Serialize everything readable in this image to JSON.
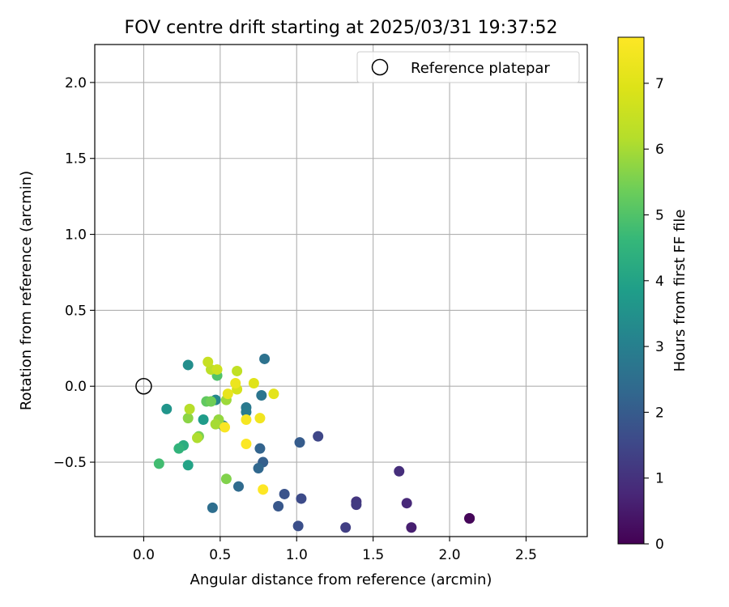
{
  "chart_data": {
    "type": "scatter",
    "title": "FOV centre drift starting at 2025/03/31 19:37:52",
    "xlabel": "Angular distance from reference (arcmin)",
    "ylabel": "Rotation from reference (arcmin)",
    "xlim": [
      -0.32,
      2.9
    ],
    "ylim": [
      -0.99,
      2.25
    ],
    "x_ticks": [
      0.0,
      0.5,
      1.0,
      1.5,
      2.0,
      2.5
    ],
    "x_tick_labels": [
      "0.0",
      "0.5",
      "1.0",
      "1.5",
      "2.0",
      "2.5"
    ],
    "y_ticks": [
      -0.5,
      0.0,
      0.5,
      1.0,
      1.5,
      2.0
    ],
    "y_tick_labels": [
      "−0.5",
      "0.0",
      "0.5",
      "1.0",
      "1.5",
      "2.0"
    ],
    "grid": true,
    "legend_placement": "upper-right",
    "legend": [
      {
        "name": "Reference platepar",
        "marker": "open-circle"
      }
    ],
    "reference_point": {
      "x": 0.0,
      "y": 0.0
    },
    "colorbar": {
      "label": "Hours from first FF file",
      "colormap": "viridis",
      "range": [
        0,
        7.7
      ],
      "ticks": [
        0,
        1,
        2,
        3,
        4,
        5,
        6,
        7
      ],
      "tick_labels": [
        "0",
        "1",
        "2",
        "3",
        "4",
        "5",
        "6",
        "7"
      ]
    },
    "points": [
      {
        "x": 2.13,
        "y": -0.87,
        "hours": 0.0
      },
      {
        "x": 2.13,
        "y": -0.87,
        "hours": 0.1
      },
      {
        "x": 1.75,
        "y": -0.93,
        "hours": 0.6
      },
      {
        "x": 1.72,
        "y": -0.77,
        "hours": 0.8
      },
      {
        "x": 1.67,
        "y": -0.56,
        "hours": 0.9
      },
      {
        "x": 1.39,
        "y": -0.76,
        "hours": 1.1
      },
      {
        "x": 1.39,
        "y": -0.78,
        "hours": 1.2
      },
      {
        "x": 1.32,
        "y": -0.93,
        "hours": 1.3
      },
      {
        "x": 1.14,
        "y": -0.33,
        "hours": 1.5
      },
      {
        "x": 1.03,
        "y": -0.74,
        "hours": 1.6
      },
      {
        "x": 1.01,
        "y": -0.92,
        "hours": 1.7
      },
      {
        "x": 0.92,
        "y": -0.71,
        "hours": 1.8
      },
      {
        "x": 0.88,
        "y": -0.79,
        "hours": 1.9
      },
      {
        "x": 1.02,
        "y": -0.37,
        "hours": 2.0
      },
      {
        "x": 0.78,
        "y": -0.5,
        "hours": 2.1
      },
      {
        "x": 0.76,
        "y": -0.41,
        "hours": 2.2
      },
      {
        "x": 0.75,
        "y": -0.54,
        "hours": 2.3
      },
      {
        "x": 0.62,
        "y": -0.66,
        "hours": 2.4
      },
      {
        "x": 0.45,
        "y": -0.8,
        "hours": 2.5
      },
      {
        "x": 0.79,
        "y": 0.18,
        "hours": 2.6
      },
      {
        "x": 0.77,
        "y": -0.06,
        "hours": 2.7
      },
      {
        "x": 0.67,
        "y": -0.14,
        "hours": 2.8
      },
      {
        "x": 0.67,
        "y": -0.17,
        "hours": 2.9
      },
      {
        "x": 0.52,
        "y": -0.26,
        "hours": 3.0
      },
      {
        "x": 0.47,
        "y": -0.09,
        "hours": 3.2
      },
      {
        "x": 0.29,
        "y": 0.14,
        "hours": 3.4
      },
      {
        "x": 0.15,
        "y": -0.15,
        "hours": 3.6
      },
      {
        "x": 0.39,
        "y": -0.22,
        "hours": 3.8
      },
      {
        "x": 0.29,
        "y": -0.52,
        "hours": 4.0
      },
      {
        "x": 0.26,
        "y": -0.39,
        "hours": 4.3
      },
      {
        "x": 0.23,
        "y": -0.41,
        "hours": 4.5
      },
      {
        "x": 0.1,
        "y": -0.51,
        "hours": 4.8
      },
      {
        "x": 0.48,
        "y": 0.07,
        "hours": 5.0
      },
      {
        "x": 0.41,
        "y": -0.1,
        "hours": 5.2
      },
      {
        "x": 0.44,
        "y": -0.1,
        "hours": 5.4
      },
      {
        "x": 0.36,
        "y": -0.33,
        "hours": 5.5
      },
      {
        "x": 0.54,
        "y": -0.61,
        "hours": 5.6
      },
      {
        "x": 0.29,
        "y": -0.21,
        "hours": 5.7
      },
      {
        "x": 0.49,
        "y": -0.22,
        "hours": 5.8
      },
      {
        "x": 0.54,
        "y": -0.09,
        "hours": 5.9
      },
      {
        "x": 0.47,
        "y": -0.25,
        "hours": 6.0
      },
      {
        "x": 0.35,
        "y": -0.34,
        "hours": 6.1
      },
      {
        "x": 0.3,
        "y": -0.15,
        "hours": 6.2
      },
      {
        "x": 0.44,
        "y": 0.11,
        "hours": 6.3
      },
      {
        "x": 0.61,
        "y": 0.1,
        "hours": 6.4
      },
      {
        "x": 0.42,
        "y": 0.16,
        "hours": 6.5
      },
      {
        "x": 0.48,
        "y": 0.11,
        "hours": 6.6
      },
      {
        "x": 0.61,
        "y": -0.02,
        "hours": 6.8
      },
      {
        "x": 0.72,
        "y": 0.02,
        "hours": 7.0
      },
      {
        "x": 0.85,
        "y": -0.05,
        "hours": 7.1
      },
      {
        "x": 0.55,
        "y": -0.05,
        "hours": 7.2
      },
      {
        "x": 0.6,
        "y": 0.02,
        "hours": 7.3
      },
      {
        "x": 0.76,
        "y": -0.21,
        "hours": 7.4
      },
      {
        "x": 0.67,
        "y": -0.22,
        "hours": 7.5
      },
      {
        "x": 0.53,
        "y": -0.27,
        "hours": 7.6
      },
      {
        "x": 0.67,
        "y": -0.38,
        "hours": 7.65
      },
      {
        "x": 0.78,
        "y": -0.68,
        "hours": 7.7
      }
    ]
  }
}
